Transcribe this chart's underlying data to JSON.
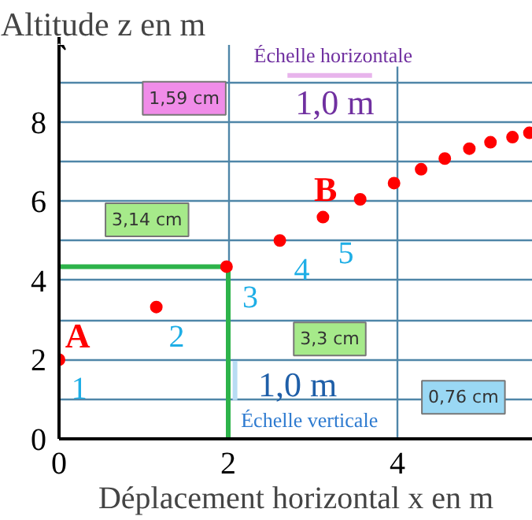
{
  "chart_data": {
    "type": "scatter",
    "xlabel": "Déplacement horizontal x en m",
    "ylabel": "Altitude z en m",
    "xlim": [
      0,
      5.6
    ],
    "ylim": [
      0,
      9.95
    ],
    "xticks": [
      0,
      2,
      4
    ],
    "yticks": [
      0,
      {
        "value": 1,
        "label": null
      },
      2,
      {
        "value": 3,
        "label": null
      },
      4,
      {
        "value": 5,
        "label": null
      },
      6,
      {
        "value": 7,
        "label": null
      },
      8,
      {
        "value": 9,
        "label": null
      }
    ],
    "grid": true,
    "marker": "circle",
    "series": [
      {
        "type": "line",
        "marker": "none",
        "color": "#2db34a",
        "x": [
          0,
          2.0,
          2.0
        ],
        "values": [
          4.35,
          4.35,
          0
        ]
      },
      {
        "type": "line",
        "marker": "none",
        "color": "#e8b4ec",
        "x": [
          2.7,
          3.7
        ],
        "values": [
          9.18,
          9.18
        ]
      },
      {
        "type": "line",
        "marker": "none",
        "color": "#b8dcf4",
        "x": [
          2.08,
          2.08
        ],
        "values": [
          0.98,
          1.97
        ]
      },
      {
        "color": "#ff0000",
        "x": [
          0,
          1.15,
          1.98,
          2.61,
          3.12,
          3.56,
          3.96,
          4.28,
          4.56,
          4.85,
          5.1,
          5.36,
          5.56
        ],
        "values": [
          2.0,
          3.33,
          4.35,
          5.01,
          5.6,
          6.05,
          6.46,
          6.81,
          7.08,
          7.33,
          7.49,
          7.62,
          7.73
        ]
      }
    ],
    "annotations": [
      "A",
      "B",
      "1",
      "2",
      "3",
      "4",
      "5",
      "Échelle horizontale",
      "1,0 m",
      "Échelle verticale",
      "1,0 m",
      "1,59 cm",
      "3,14 cm",
      "3,3 cm",
      "0,76 cm"
    ]
  }
}
